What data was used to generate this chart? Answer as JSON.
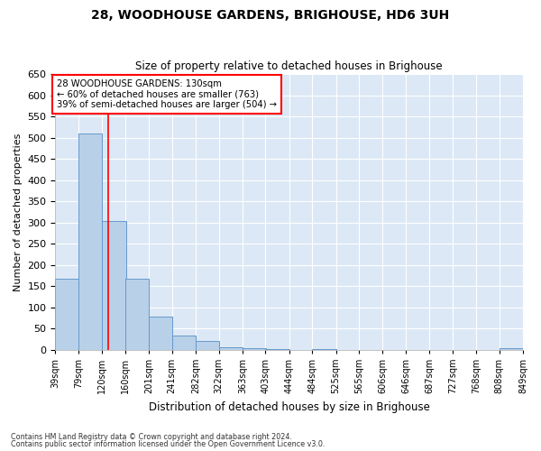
{
  "title": "28, WOODHOUSE GARDENS, BRIGHOUSE, HD6 3UH",
  "subtitle": "Size of property relative to detached houses in Brighouse",
  "xlabel": "Distribution of detached houses by size in Brighouse",
  "ylabel": "Number of detached properties",
  "bar_color": "#b8d0e8",
  "bar_edge_color": "#6699cc",
  "background_color": "#dce8f5",
  "grid_color": "#ffffff",
  "bins_left": [
    39,
    79,
    120,
    160,
    201,
    241,
    282,
    322,
    363,
    403,
    444,
    484,
    525,
    565,
    606,
    646,
    687,
    727,
    768,
    808
  ],
  "bin_labels": [
    "39sqm",
    "79sqm",
    "120sqm",
    "160sqm",
    "201sqm",
    "241sqm",
    "282sqm",
    "322sqm",
    "363sqm",
    "403sqm",
    "444sqm",
    "484sqm",
    "525sqm",
    "565sqm",
    "606sqm",
    "646sqm",
    "687sqm",
    "727sqm",
    "768sqm",
    "808sqm",
    "849sqm"
  ],
  "values": [
    167,
    510,
    303,
    167,
    78,
    33,
    20,
    5,
    3,
    2,
    0,
    2,
    0,
    0,
    0,
    0,
    0,
    0,
    0,
    3
  ],
  "bin_width": 41,
  "red_line_x": 130,
  "annotation_line1": "28 WOODHOUSE GARDENS: 130sqm",
  "annotation_line2": "← 60% of detached houses are smaller (763)",
  "annotation_line3": "39% of semi-detached houses are larger (504) →",
  "annotation_box_color": "white",
  "annotation_border_color": "red",
  "xlim_left": 39,
  "xlim_right": 849,
  "ylim": [
    0,
    650
  ],
  "yticks": [
    0,
    50,
    100,
    150,
    200,
    250,
    300,
    350,
    400,
    450,
    500,
    550,
    600,
    650
  ],
  "footnote1": "Contains HM Land Registry data © Crown copyright and database right 2024.",
  "footnote2": "Contains public sector information licensed under the Open Government Licence v3.0."
}
